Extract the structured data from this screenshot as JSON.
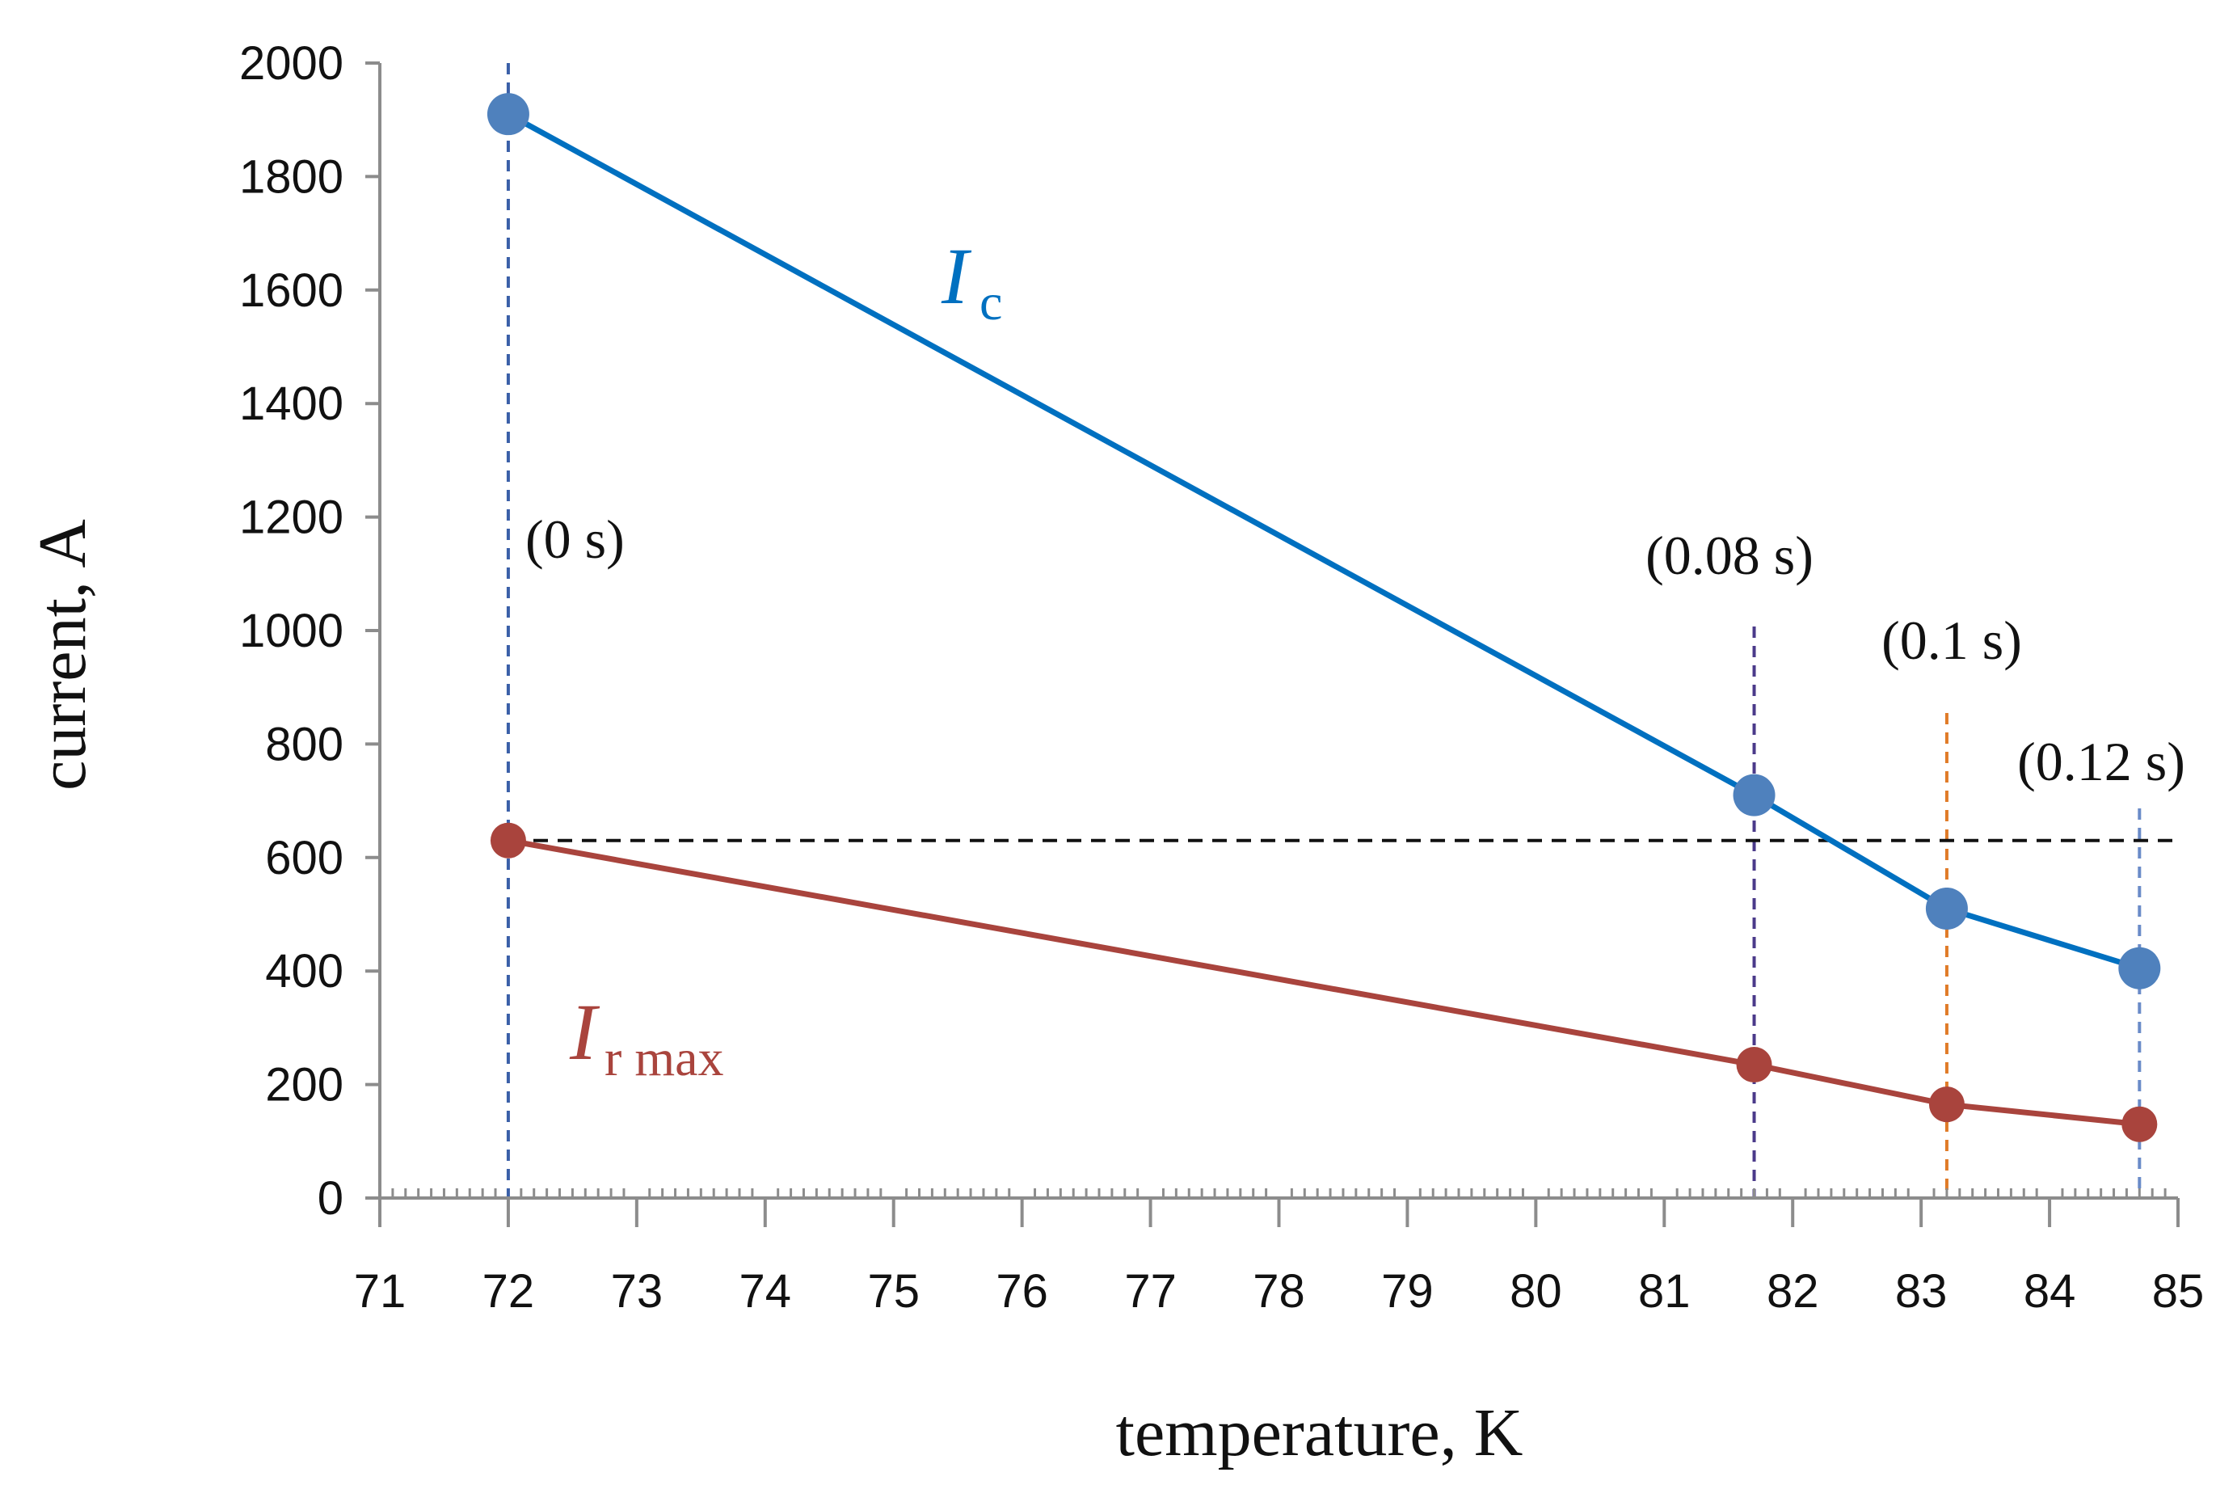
{
  "chart_data": {
    "type": "line",
    "title": "",
    "xlabel": "temperature, K",
    "ylabel": "current, A",
    "xlim": [
      71,
      85
    ],
    "ylim": [
      0,
      2000
    ],
    "xticks": [
      71,
      72,
      73,
      74,
      75,
      76,
      77,
      78,
      79,
      80,
      81,
      82,
      83,
      84,
      85
    ],
    "yticks": [
      0,
      200,
      400,
      600,
      800,
      1000,
      1200,
      1400,
      1600,
      1800,
      2000
    ],
    "grid": false,
    "series": [
      {
        "name": "Ic",
        "label_main": "I",
        "label_sub": "c",
        "color": "#0070c0",
        "marker_color": "#4f81bd",
        "x": [
          72,
          81.7,
          83.2,
          84.7
        ],
        "y": [
          1910,
          710,
          510,
          405
        ]
      },
      {
        "name": "Ir max",
        "label_main": "I",
        "label_sub": "r max",
        "color": "#a9443d",
        "marker_color": "#a9443d",
        "x": [
          72,
          81.7,
          83.2,
          84.7
        ],
        "y": [
          630,
          235,
          165,
          130
        ]
      }
    ],
    "reference_lines": [
      {
        "orientation": "vertical",
        "x": 72,
        "color": "#3a5fa8",
        "label": "(0 s)"
      },
      {
        "orientation": "vertical",
        "x": 81.7,
        "color": "#4b3a8a",
        "label": "(0.08 s)"
      },
      {
        "orientation": "vertical",
        "x": 83.2,
        "color": "#e07b28",
        "label": "(0.1 s)"
      },
      {
        "orientation": "vertical",
        "x": 84.7,
        "color": "#6a8bc8",
        "label": "(0.12 s)"
      },
      {
        "orientation": "horizontal",
        "y": 630,
        "color": "#111111",
        "label": ""
      }
    ]
  }
}
